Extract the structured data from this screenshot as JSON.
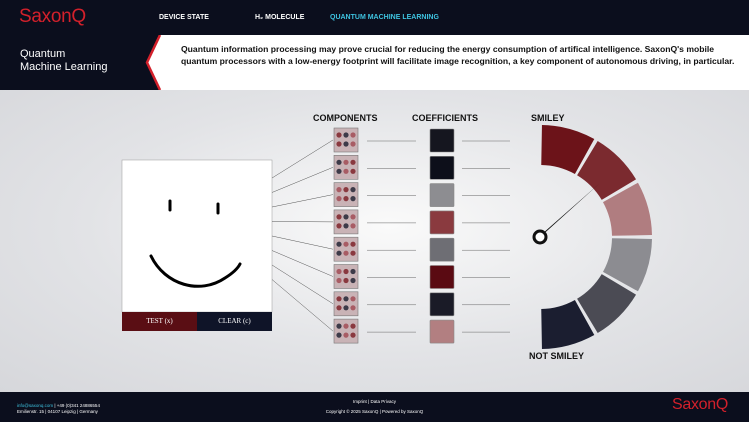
{
  "nav": {
    "logo": "SaxonQ",
    "items": [
      "DEVICE STATE",
      "H₂ MOLECULE",
      "QUANTUM MACHINE LEARNING"
    ]
  },
  "header": {
    "title_lines": [
      "Quantum",
      "Machine Learning"
    ],
    "description": "Quantum information processing may prove crucial for reducing the energy consumption of artifical intelligence. SaxonQ's mobile quantum processors with a low-energy footprint will facilitate image recognition, a key component of autonomous driving, in particular."
  },
  "drawing": {
    "buttons": [
      "TEST (x)",
      "CLEAR (c)"
    ]
  },
  "columns": {
    "components": "COMPONENTS",
    "coefficients": "COEFFICIENTS"
  },
  "coefficients": {
    "colors": [
      "#15161f",
      "#0d0f1a",
      "#8d8d91",
      "#8a3a3f",
      "#6e6e74",
      "#5a0a12",
      "#1a1b27",
      "#b27f81"
    ]
  },
  "gauge": {
    "top_label": "SMILEY",
    "bottom_label": "NOT SMILEY",
    "colors": [
      "#6c1319",
      "#7b2a2f",
      "#b07d80",
      "#8c8c91",
      "#4b4b54",
      "#1b1e30"
    ]
  },
  "footer": {
    "email": "info@saxonq.com",
    "phone": "| +49 (0)341 24886554",
    "address": "Emilienstr. 15 | 04107 Leipzig | Germany",
    "links": "Imprint | Data Privacy",
    "copyright": "Copyright © 2025 SaxonQ | Powered by SaxonQ",
    "logo": "SaxonQ"
  }
}
